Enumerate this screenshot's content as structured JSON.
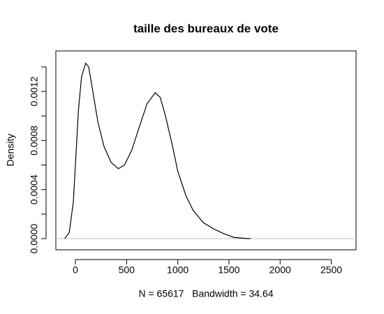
{
  "chart_data": {
    "type": "line",
    "title": "taille des bureaux de vote",
    "x_label": "N = 65617   Bandwidth = 34.64",
    "y_label": "Density",
    "x": [
      -104,
      -60,
      -20,
      0,
      30,
      60,
      100,
      130,
      170,
      220,
      280,
      350,
      420,
      480,
      550,
      620,
      700,
      780,
      830,
      880,
      950,
      1000,
      1080,
      1150,
      1250,
      1350,
      1450,
      1550,
      1650,
      1710
    ],
    "values": [
      0.0,
      5e-05,
      0.0003,
      0.0006,
      0.00105,
      0.00132,
      0.00143,
      0.0014,
      0.0012,
      0.00095,
      0.00075,
      0.00062,
      0.00057,
      0.0006,
      0.00072,
      0.0009,
      0.0011,
      0.00119,
      0.00115,
      0.001,
      0.00075,
      0.00055,
      0.00035,
      0.00023,
      0.00013,
      8e-05,
      4e-05,
      1e-05,
      3e-06,
      0.0
    ],
    "color": "#000000",
    "xlim": [
      -191,
      2742
    ],
    "ylim": [
      -9.1e-05,
      0.00153
    ],
    "xticks": [
      0,
      500,
      1000,
      1500,
      2000,
      2500
    ],
    "yticks": [
      {
        "value": 0,
        "label": "0.0000"
      },
      {
        "value": 0.0002,
        "label": null
      },
      {
        "value": 0.0004,
        "label": "0.0004"
      },
      {
        "value": 0.0006,
        "label": null
      },
      {
        "value": 0.0008,
        "label": "0.0008"
      },
      {
        "value": 0.001,
        "label": null
      },
      {
        "value": 0.0012,
        "label": "0.0012"
      },
      {
        "value": 0.0014,
        "label": null
      }
    ]
  }
}
